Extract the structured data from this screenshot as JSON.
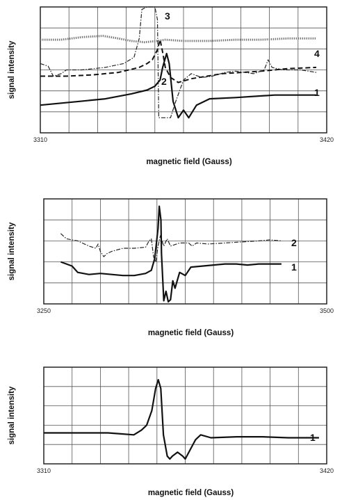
{
  "chart_data": [
    {
      "type": "line",
      "xlabel": "magnetic field (Gauss)",
      "ylabel": "signal intensity",
      "xlim": [
        3310,
        3420
      ],
      "x_ticks": [
        "3310",
        "3420"
      ],
      "grid": true,
      "series": [
        {
          "name": "1",
          "style": "solid",
          "points": [
            [
              3310,
              0.22
            ],
            [
              3325,
              0.25
            ],
            [
              3335,
              0.27
            ],
            [
              3345,
              0.31
            ],
            [
              3351,
              0.34
            ],
            [
              3354,
              0.37
            ],
            [
              3356,
              0.42
            ],
            [
              3357,
              0.52
            ],
            [
              3358.5,
              0.63
            ],
            [
              3359.5,
              0.55
            ],
            [
              3361,
              0.25
            ],
            [
              3363,
              0.12
            ],
            [
              3365,
              0.18
            ],
            [
              3367,
              0.12
            ],
            [
              3370,
              0.22
            ],
            [
              3375,
              0.27
            ],
            [
              3385,
              0.28
            ],
            [
              3400,
              0.3
            ],
            [
              3410,
              0.3
            ],
            [
              3416,
              0.3
            ]
          ]
        },
        {
          "name": "2",
          "style": "dashed",
          "points": [
            [
              3310,
              0.45
            ],
            [
              3320,
              0.45
            ],
            [
              3330,
              0.46
            ],
            [
              3340,
              0.48
            ],
            [
              3348,
              0.52
            ],
            [
              3351,
              0.55
            ],
            [
              3353,
              0.58
            ],
            [
              3355,
              0.66
            ],
            [
              3356,
              0.74
            ],
            [
              3357,
              0.64
            ],
            [
              3358,
              0.52
            ],
            [
              3360,
              0.44
            ],
            [
              3363,
              0.4
            ],
            [
              3368,
              0.43
            ],
            [
              3380,
              0.47
            ],
            [
              3395,
              0.49
            ],
            [
              3405,
              0.51
            ],
            [
              3416,
              0.52
            ]
          ]
        },
        {
          "name": "3",
          "style": "dash-dot",
          "points": [
            [
              3310,
              0.55
            ],
            [
              3313,
              0.53
            ],
            [
              3315,
              0.45
            ],
            [
              3318,
              0.47
            ],
            [
              3320,
              0.5
            ],
            [
              3326,
              0.5
            ],
            [
              3335,
              0.52
            ],
            [
              3342,
              0.55
            ],
            [
              3346,
              0.6
            ],
            [
              3348,
              0.75
            ],
            [
              3349,
              0.98
            ],
            [
              3351,
              1.0
            ],
            [
              3354,
              1.0
            ],
            [
              3355,
              0.9
            ],
            [
              3355.5,
              0.12
            ],
            [
              3360,
              0.12
            ],
            [
              3362,
              0.25
            ],
            [
              3365,
              0.42
            ],
            [
              3368,
              0.47
            ],
            [
              3372,
              0.44
            ],
            [
              3376,
              0.45
            ],
            [
              3381,
              0.48
            ],
            [
              3385,
              0.49
            ],
            [
              3392,
              0.47
            ],
            [
              3396,
              0.5
            ],
            [
              3397.5,
              0.58
            ],
            [
              3399,
              0.52
            ],
            [
              3403,
              0.5
            ],
            [
              3410,
              0.5
            ],
            [
              3416,
              0.48
            ]
          ]
        },
        {
          "name": "4",
          "style": "dotted-thick",
          "points": [
            [
              3310,
              0.74
            ],
            [
              3318,
              0.74
            ],
            [
              3326,
              0.76
            ],
            [
              3334,
              0.77
            ],
            [
              3340,
              0.75
            ],
            [
              3345,
              0.73
            ],
            [
              3350,
              0.72
            ],
            [
              3355,
              0.73
            ],
            [
              3358,
              0.74
            ],
            [
              3365,
              0.73
            ],
            [
              3375,
              0.73
            ],
            [
              3385,
              0.74
            ],
            [
              3395,
              0.74
            ],
            [
              3405,
              0.75
            ],
            [
              3416,
              0.75
            ]
          ]
        }
      ]
    },
    {
      "type": "line",
      "xlabel": "magnetic field (Gauss)",
      "ylabel": "signal intensity",
      "xlim": [
        3250,
        3500
      ],
      "x_ticks": [
        "3250",
        "3500"
      ],
      "grid": true,
      "series": [
        {
          "name": "2",
          "style": "dash-dot",
          "points": [
            [
              3265,
              0.67
            ],
            [
              3270,
              0.62
            ],
            [
              3280,
              0.6
            ],
            [
              3290,
              0.55
            ],
            [
              3296,
              0.53
            ],
            [
              3298,
              0.57
            ],
            [
              3300,
              0.5
            ],
            [
              3303,
              0.45
            ],
            [
              3306,
              0.48
            ],
            [
              3310,
              0.5
            ],
            [
              3320,
              0.53
            ],
            [
              3330,
              0.53
            ],
            [
              3340,
              0.54
            ],
            [
              3343,
              0.6
            ],
            [
              3345,
              0.62
            ],
            [
              3347,
              0.45
            ],
            [
              3349,
              0.4
            ],
            [
              3351,
              0.55
            ],
            [
              3353,
              0.65
            ],
            [
              3356,
              0.55
            ],
            [
              3359,
              0.62
            ],
            [
              3362,
              0.55
            ],
            [
              3370,
              0.58
            ],
            [
              3378,
              0.58
            ],
            [
              3381,
              0.55
            ],
            [
              3385,
              0.58
            ],
            [
              3395,
              0.57
            ],
            [
              3410,
              0.58
            ],
            [
              3425,
              0.59
            ],
            [
              3440,
              0.6
            ],
            [
              3450,
              0.61
            ],
            [
              3460,
              0.6
            ]
          ]
        },
        {
          "name": "1",
          "style": "solid",
          "points": [
            [
              3265,
              0.4
            ],
            [
              3270,
              0.38
            ],
            [
              3275,
              0.36
            ],
            [
              3280,
              0.3
            ],
            [
              3290,
              0.28
            ],
            [
              3300,
              0.29
            ],
            [
              3310,
              0.28
            ],
            [
              3320,
              0.27
            ],
            [
              3330,
              0.27
            ],
            [
              3340,
              0.29
            ],
            [
              3345,
              0.32
            ],
            [
              3348,
              0.43
            ],
            [
              3351,
              0.72
            ],
            [
              3352,
              0.93
            ],
            [
              3353.5,
              0.8
            ],
            [
              3354,
              0.48
            ],
            [
              3356,
              0.03
            ],
            [
              3358,
              0.12
            ],
            [
              3360,
              0.02
            ],
            [
              3362,
              0.04
            ],
            [
              3364,
              0.22
            ],
            [
              3366,
              0.15
            ],
            [
              3370,
              0.3
            ],
            [
              3375,
              0.27
            ],
            [
              3380,
              0.35
            ],
            [
              3390,
              0.36
            ],
            [
              3400,
              0.37
            ],
            [
              3410,
              0.38
            ],
            [
              3420,
              0.38
            ],
            [
              3430,
              0.37
            ],
            [
              3440,
              0.38
            ],
            [
              3450,
              0.38
            ],
            [
              3460,
              0.38
            ]
          ]
        }
      ]
    },
    {
      "type": "line",
      "xlabel": "magnetic field (Gauss)",
      "ylabel": "signal intensity",
      "xlim": [
        3310,
        3420
      ],
      "x_ticks": [
        "3310",
        "3420"
      ],
      "grid": true,
      "series": [
        {
          "name": "1",
          "style": "solid",
          "points": [
            [
              3310,
              0.32
            ],
            [
              3320,
              0.32
            ],
            [
              3330,
              0.32
            ],
            [
              3335,
              0.32
            ],
            [
              3340,
              0.31
            ],
            [
              3345,
              0.3
            ],
            [
              3348,
              0.35
            ],
            [
              3350,
              0.4
            ],
            [
              3352,
              0.55
            ],
            [
              3353.5,
              0.78
            ],
            [
              3354.5,
              0.87
            ],
            [
              3355.5,
              0.78
            ],
            [
              3356.5,
              0.3
            ],
            [
              3358,
              0.08
            ],
            [
              3359,
              0.05
            ],
            [
              3360,
              0.08
            ],
            [
              3362,
              0.12
            ],
            [
              3364,
              0.08
            ],
            [
              3365,
              0.05
            ],
            [
              3367,
              0.15
            ],
            [
              3369,
              0.25
            ],
            [
              3371,
              0.3
            ],
            [
              3375,
              0.27
            ],
            [
              3385,
              0.28
            ],
            [
              3395,
              0.28
            ],
            [
              3405,
              0.27
            ],
            [
              3412,
              0.27
            ],
            [
              3417,
              0.27
            ]
          ]
        }
      ]
    }
  ]
}
